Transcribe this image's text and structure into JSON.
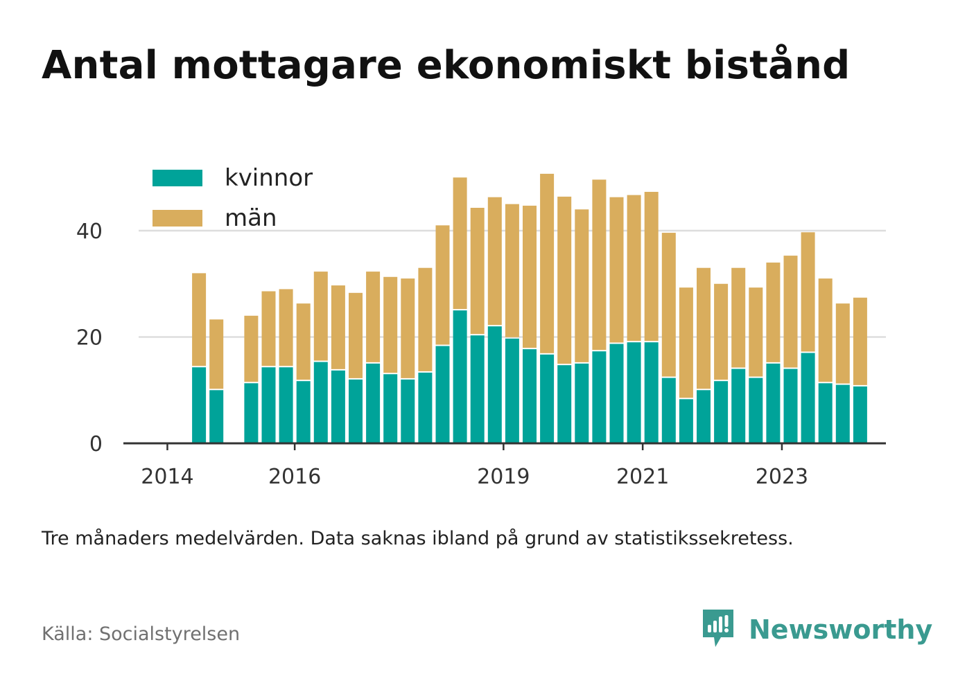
{
  "title": "Antal mottagare ekonomiskt bistånd",
  "note": "Tre månaders medelvärden. Data saknas ibland på grund av statistikssekretess.",
  "source": "Källa: Socialstyrelsen",
  "brand": {
    "name": "Newsworthy",
    "icon": "newsworthy-logo-icon",
    "color": "#3a9a90"
  },
  "colors": {
    "kvinnor": "#00a399",
    "man": "#d9ad5d",
    "grid": "#dddddd",
    "axis": "#333333"
  },
  "chart_data": {
    "type": "bar",
    "stacked": true,
    "legend_position": "top-left",
    "grid": true,
    "ylim": [
      0,
      50
    ],
    "y_ticks": [
      0,
      20,
      40
    ],
    "x_tick_labels": [
      {
        "label": "2014",
        "before_index": 0
      },
      {
        "label": "2016",
        "before_index": 7
      },
      {
        "label": "2019",
        "before_index": 19
      },
      {
        "label": "2021",
        "before_index": 27
      },
      {
        "label": "2023",
        "before_index": 35
      }
    ],
    "categories": [
      "2014-Q1",
      "2014-Q2",
      "2014-Q3",
      "2014-Q4",
      "2015-Q1",
      "2015-Q2",
      "2015-Q3",
      "2015-Q4",
      "2016-Q1",
      "2016-Q2",
      "2016-Q3",
      "2016-Q4",
      "2017-Q1",
      "2017-Q2",
      "2017-Q3",
      "2017-Q4",
      "2018-Q1",
      "2018-Q2",
      "2018-Q3",
      "2018-Q4",
      "2019-Q1",
      "2019-Q2",
      "2019-Q3",
      "2019-Q4",
      "2020-Q1",
      "2020-Q2",
      "2020-Q3",
      "2020-Q4",
      "2021-Q1",
      "2021-Q2",
      "2021-Q3",
      "2021-Q4",
      "2022-Q1",
      "2022-Q2",
      "2022-Q3",
      "2022-Q4",
      "2023-Q1",
      "2023-Q2",
      "2023-Q3",
      "2023-Q4"
    ],
    "series": [
      {
        "name": "kvinnor",
        "values": [
          null,
          14.3,
          10.0,
          null,
          11.3,
          14.3,
          14.3,
          11.7,
          15.3,
          13.7,
          12.0,
          15.0,
          13.0,
          12.0,
          13.3,
          18.3,
          25.0,
          20.3,
          22.0,
          19.7,
          17.7,
          16.7,
          14.7,
          15.0,
          17.3,
          18.7,
          19.0,
          19.0,
          12.3,
          8.3,
          10.0,
          11.7,
          14.0,
          12.3,
          15.0,
          14.0,
          17.0,
          11.3,
          11.0,
          10.7
        ]
      },
      {
        "name": "män",
        "values": [
          null,
          17.7,
          13.3,
          null,
          12.7,
          14.3,
          14.7,
          14.6,
          17.0,
          16.0,
          16.3,
          17.3,
          18.3,
          19.0,
          19.7,
          22.7,
          25.0,
          24.0,
          24.3,
          25.3,
          27.0,
          34.0,
          31.7,
          29.0,
          32.3,
          27.6,
          27.7,
          28.3,
          27.3,
          21.0,
          23.0,
          18.3,
          19.0,
          17.0,
          19.0,
          21.3,
          22.7,
          19.7,
          15.3,
          16.7
        ]
      }
    ]
  }
}
